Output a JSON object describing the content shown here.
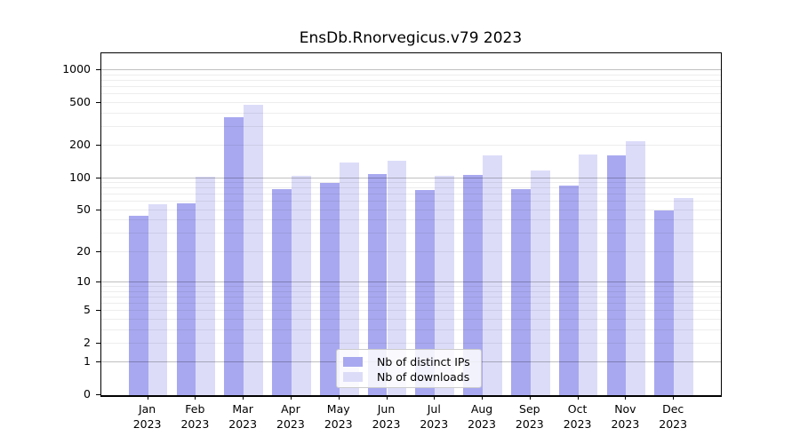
{
  "chart_data": {
    "type": "bar",
    "title": "EnsDb.Rnorvegicus.v79 2023",
    "categories": [
      "Jan",
      "Feb",
      "Mar",
      "Apr",
      "May",
      "Jun",
      "Jul",
      "Aug",
      "Sep",
      "Oct",
      "Nov",
      "Dec"
    ],
    "category_year": "2023",
    "series": [
      {
        "name": "Nb of distinct IPs",
        "color": "#a8a8f0",
        "values": [
          44,
          58,
          368,
          79,
          91,
          110,
          78,
          107,
          79,
          85,
          164,
          50
        ]
      },
      {
        "name": "Nb of downloads",
        "color": "#dcdcf9",
        "values": [
          57,
          103,
          476,
          105,
          140,
          145,
          106,
          164,
          117,
          166,
          219,
          65
        ]
      }
    ],
    "yscale": "log10(1+y)",
    "yticks": [
      0,
      1,
      2,
      5,
      10,
      20,
      50,
      100,
      200,
      500,
      1000
    ],
    "grid_major_values": [
      1,
      10,
      100,
      1000
    ],
    "ylim": [
      0,
      1435
    ],
    "xlabel": "",
    "ylabel": "",
    "grid": "on",
    "legend_position": "inside lower center",
    "colors": {
      "grid_major": "#c2c2c2",
      "grid_minor": "#ededed",
      "axis": "#000000",
      "background": "#ffffff",
      "text": "#000000"
    }
  }
}
